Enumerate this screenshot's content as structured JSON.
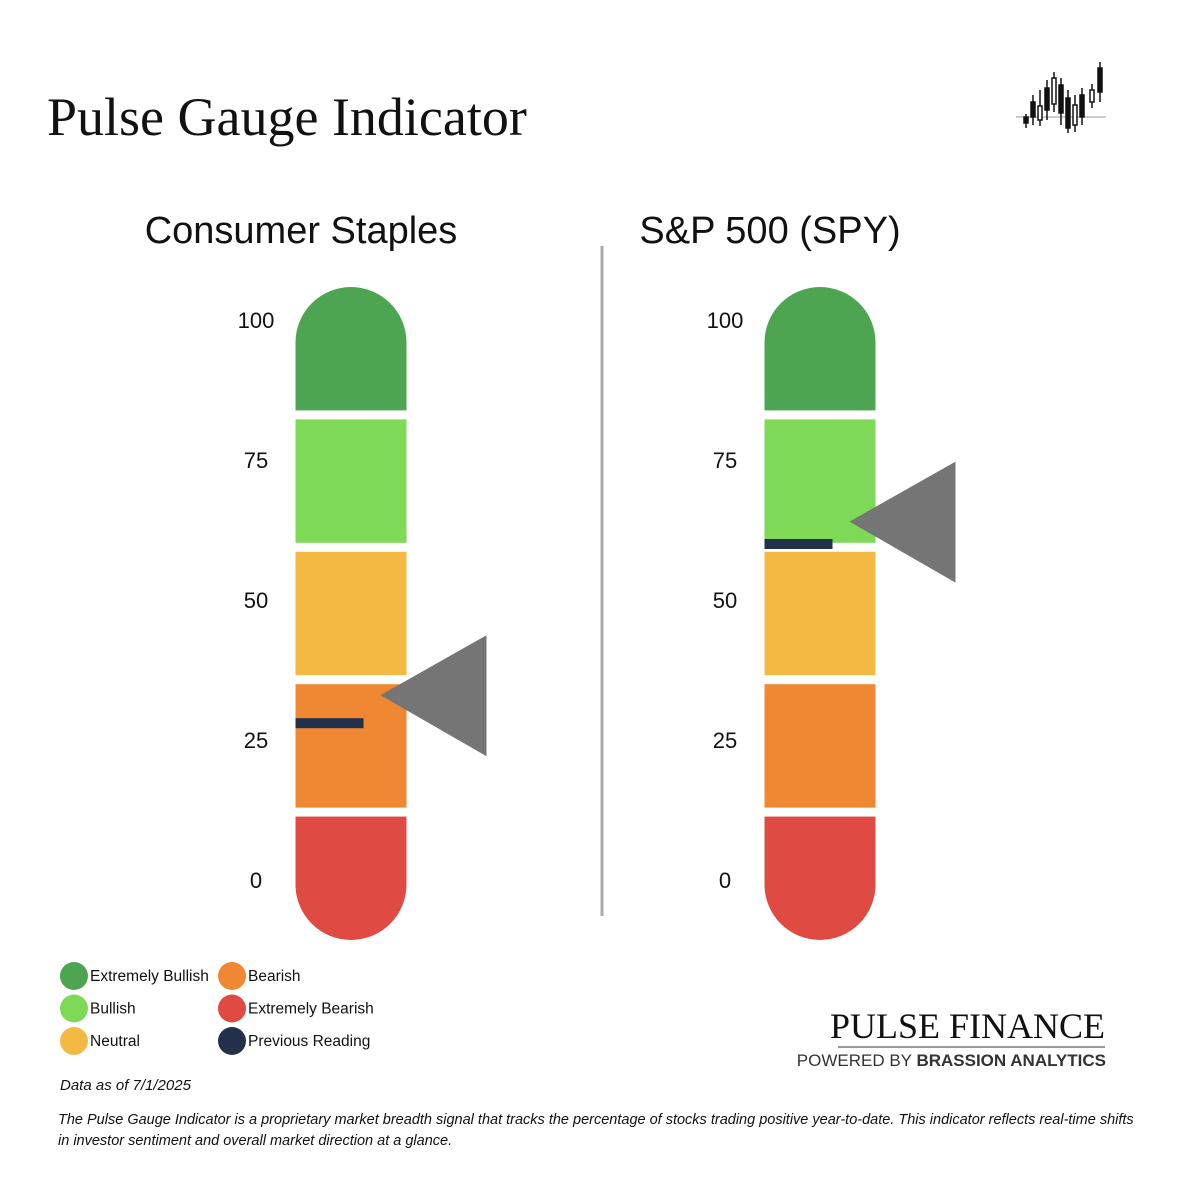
{
  "header": {
    "title": "Pulse Gauge Indicator"
  },
  "chart_data": [
    {
      "type": "gauge",
      "title": "Consumer Staples",
      "ylim": [
        0,
        100
      ],
      "yticks": [
        0,
        25,
        50,
        75,
        100
      ],
      "value": 33,
      "previous": 28,
      "pointer_color": "#757575"
    },
    {
      "type": "gauge",
      "title": "S&P 500 (SPY)",
      "ylim": [
        0,
        100
      ],
      "yticks": [
        0,
        25,
        50,
        75,
        100
      ],
      "value": 64,
      "previous": 60,
      "pointer_color": "#757575"
    }
  ],
  "legend": [
    {
      "name": "Extremely Bullish",
      "color": "#4ea551"
    },
    {
      "name": "Bullish",
      "color": "#7ed957"
    },
    {
      "name": "Neutral",
      "color": "#f3b942"
    },
    {
      "name": "Bearish",
      "color": "#ef8733"
    },
    {
      "name": "Extremely Bearish",
      "color": "#df4b43"
    },
    {
      "name": "Previous Reading",
      "color": "#22304a"
    }
  ],
  "footer": {
    "date": "Data as of 7/1/2025",
    "description": "The Pulse Gauge Indicator is a proprietary market breadth signal that tracks the percentage of stocks trading positive year-to-date. This indicator reflects real-time shifts in investor sentiment and overall market direction at a glance.",
    "brand": "PULSE FINANCE",
    "powered": "POWERED BY",
    "company": "BRASSION ANALYTICS"
  }
}
